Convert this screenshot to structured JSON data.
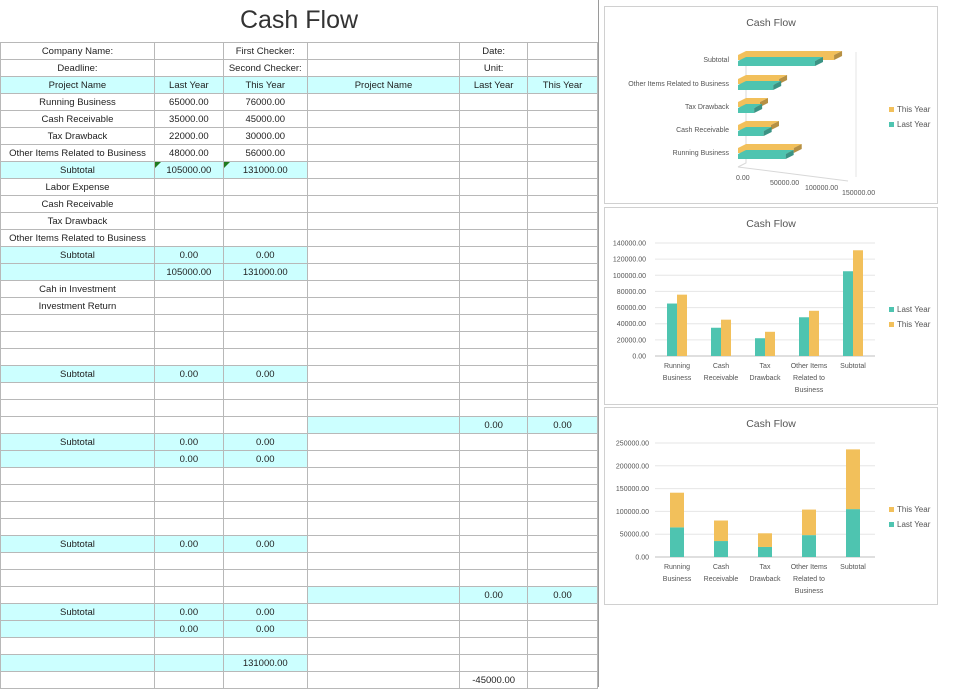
{
  "sheet": {
    "title": "Cash Flow",
    "info": {
      "company_label": "Company Name:",
      "first_checker_label": "First Checker:",
      "date_label": "Date:",
      "deadline_label": "Deadline:",
      "second_checker_label": "Second Checker:",
      "unit_label": "Unit:"
    },
    "headers": {
      "project_name": "Project Name",
      "last_year": "Last Year",
      "this_year": "This Year",
      "project_name_2": "Project Name",
      "last_year_2": "Last Year",
      "this_year_2": "This Year"
    },
    "rows": {
      "running_business": {
        "label": "Running Business",
        "last": "65000.00",
        "this": "76000.00"
      },
      "cash_receivable": {
        "label": "Cash Receivable",
        "last": "35000.00",
        "this": "45000.00"
      },
      "tax_drawback": {
        "label": "Tax Drawback",
        "last": "22000.00",
        "this": "30000.00"
      },
      "other_items": {
        "label": "Other Items Related to Business",
        "last": "48000.00",
        "this": "56000.00"
      },
      "subtotal_1": {
        "label": "Subtotal",
        "last": "105000.00",
        "this": "131000.00"
      },
      "labor_expense": {
        "label": "Labor Expense"
      },
      "cash_receivable_2": {
        "label": "Cash Receivable"
      },
      "tax_drawback_2": {
        "label": "Tax Drawback"
      },
      "other_items_2": {
        "label": "Other Items Related to Business"
      },
      "subtotal_2": {
        "label": "Subtotal",
        "last": "0.00",
        "this": "0.00"
      },
      "net_1": {
        "last": "105000.00",
        "this": "131000.00"
      },
      "cash_in_investment": {
        "label": "Cah in Investment"
      },
      "investment_return": {
        "label": "Investment Return"
      },
      "subtotal_3": {
        "label": "Subtotal",
        "last": "0.00",
        "this": "0.00"
      },
      "right_total_1": {
        "last": "0.00",
        "this": "0.00"
      },
      "subtotal_4": {
        "label": "Subtotal",
        "last": "0.00",
        "this": "0.00"
      },
      "net_2": {
        "last": "0.00",
        "this": "0.00"
      },
      "subtotal_5": {
        "label": "Subtotal",
        "last": "0.00",
        "this": "0.00"
      },
      "right_total_2": {
        "last": "0.00",
        "this": "0.00"
      },
      "subtotal_6": {
        "label": "Subtotal",
        "last": "0.00",
        "this": "0.00"
      },
      "net_3": {
        "last": "0.00",
        "this": "0.00"
      },
      "total_this": {
        "this": "131000.00"
      },
      "final_right": {
        "last": "-45000.00"
      }
    }
  },
  "chart_data": [
    {
      "type": "bar",
      "orientation": "horizontal",
      "style": "3d",
      "title": "Cash Flow",
      "categories": [
        "Running Business",
        "Cash Receivable",
        "Tax Drawback",
        "Other Items Related to Business",
        "Subtotal"
      ],
      "series": [
        {
          "name": "Last Year",
          "values": [
            65000,
            35000,
            22000,
            48000,
            105000
          ],
          "color": "#4ec4b0"
        },
        {
          "name": "This Year",
          "values": [
            76000,
            45000,
            30000,
            56000,
            131000
          ],
          "color": "#f2c05b"
        }
      ],
      "legend_order": [
        "This Year",
        "Last Year"
      ],
      "tick_labels": [
        "0.00",
        "50000.00",
        "100000.00",
        "150000.00"
      ],
      "xlim": [
        0,
        150000
      ],
      "legend": "right",
      "grid": false
    },
    {
      "type": "bar",
      "title": "Cash Flow",
      "categories": [
        "Running Business",
        "Cash Receivable",
        "Tax Drawback",
        "Other Items Related to Business",
        "Subtotal"
      ],
      "series": [
        {
          "name": "Last Year",
          "values": [
            65000,
            35000,
            22000,
            48000,
            105000
          ],
          "color": "#4ec4b0"
        },
        {
          "name": "This Year",
          "values": [
            76000,
            45000,
            30000,
            56000,
            131000
          ],
          "color": "#f2c05b"
        }
      ],
      "legend_order": [
        "Last Year",
        "This Year"
      ],
      "tick_labels": [
        "0.00",
        "20000.00",
        "40000.00",
        "60000.00",
        "80000.00",
        "100000.00",
        "120000.00",
        "140000.00"
      ],
      "ylim": [
        0,
        140000
      ],
      "legend": "right",
      "grid": true
    },
    {
      "type": "bar",
      "stacked": true,
      "title": "Cash Flow",
      "categories": [
        "Running Business",
        "Cash Receivable",
        "Tax Drawback",
        "Other Items Related to Business",
        "Subtotal"
      ],
      "series": [
        {
          "name": "Last Year",
          "values": [
            65000,
            35000,
            22000,
            48000,
            105000
          ],
          "color": "#4ec4b0"
        },
        {
          "name": "This Year",
          "values": [
            76000,
            45000,
            30000,
            56000,
            131000
          ],
          "color": "#f2c05b"
        }
      ],
      "legend_order": [
        "This Year",
        "Last Year"
      ],
      "tick_labels": [
        "0.00",
        "50000.00",
        "100000.00",
        "150000.00",
        "200000.00",
        "250000.00"
      ],
      "ylim": [
        0,
        250000
      ],
      "legend": "right",
      "grid": true
    }
  ]
}
